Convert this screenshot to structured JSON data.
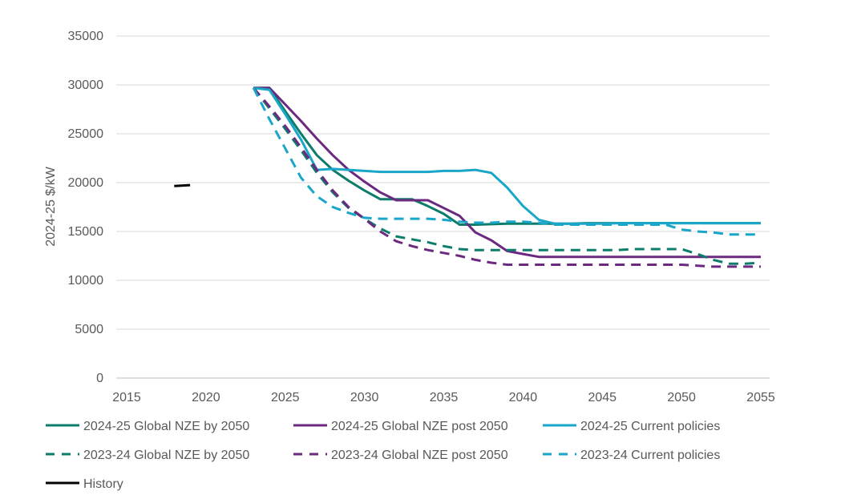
{
  "chart_data": {
    "type": "line",
    "ylabel": "2024-25 $/kW",
    "xlabel": "",
    "xlim": [
      2015,
      2055
    ],
    "ylim": [
      0,
      35000
    ],
    "xticks": [
      "2015",
      "2020",
      "2025",
      "2030",
      "2035",
      "2040",
      "2045",
      "2050",
      "2055"
    ],
    "yticks": [
      "0",
      "5000",
      "10000",
      "15000",
      "20000",
      "25000",
      "30000",
      "35000"
    ],
    "grid": "horizontal",
    "legend_position": "bottom",
    "series": [
      {
        "name": "2024-25 Global NZE by 2050",
        "color": "#0E7C6B",
        "dash": "solid",
        "points": [
          [
            2023,
            29700
          ],
          [
            2024,
            29700
          ],
          [
            2025,
            27300
          ],
          [
            2026,
            25000
          ],
          [
            2027,
            22800
          ],
          [
            2028,
            21300
          ],
          [
            2029,
            20200
          ],
          [
            2030,
            19200
          ],
          [
            2031,
            18300
          ],
          [
            2032,
            18300
          ],
          [
            2033,
            18300
          ],
          [
            2034,
            17600
          ],
          [
            2035,
            16800
          ],
          [
            2036,
            15700
          ],
          [
            2037,
            15700
          ],
          [
            2038,
            15750
          ],
          [
            2039,
            15800
          ],
          [
            2040,
            15800
          ],
          [
            2041,
            15800
          ],
          [
            2042,
            15800
          ],
          [
            2043,
            15800
          ],
          [
            2044,
            15850
          ],
          [
            2045,
            15850
          ],
          [
            2046,
            15850
          ],
          [
            2047,
            15850
          ],
          [
            2048,
            15850
          ],
          [
            2049,
            15850
          ],
          [
            2050,
            15850
          ],
          [
            2051,
            15850
          ],
          [
            2052,
            15850
          ],
          [
            2053,
            15850
          ],
          [
            2054,
            15850
          ],
          [
            2055,
            15850
          ]
        ]
      },
      {
        "name": "2024-25 Global NZE post 2050",
        "color": "#6B2A80",
        "dash": "solid",
        "points": [
          [
            2023,
            29700
          ],
          [
            2024,
            29700
          ],
          [
            2025,
            28000
          ],
          [
            2026,
            26300
          ],
          [
            2027,
            24500
          ],
          [
            2028,
            22800
          ],
          [
            2029,
            21300
          ],
          [
            2030,
            20100
          ],
          [
            2031,
            19000
          ],
          [
            2032,
            18200
          ],
          [
            2033,
            18200
          ],
          [
            2034,
            18200
          ],
          [
            2035,
            17400
          ],
          [
            2036,
            16600
          ],
          [
            2037,
            14900
          ],
          [
            2038,
            14100
          ],
          [
            2039,
            13000
          ],
          [
            2040,
            12700
          ],
          [
            2041,
            12400
          ],
          [
            2042,
            12400
          ],
          [
            2043,
            12400
          ],
          [
            2044,
            12400
          ],
          [
            2045,
            12400
          ],
          [
            2046,
            12400
          ],
          [
            2047,
            12400
          ],
          [
            2048,
            12400
          ],
          [
            2049,
            12400
          ],
          [
            2050,
            12400
          ],
          [
            2051,
            12400
          ],
          [
            2052,
            12400
          ],
          [
            2053,
            12400
          ],
          [
            2054,
            12400
          ],
          [
            2055,
            12400
          ]
        ]
      },
      {
        "name": "2024-25 Current policies",
        "color": "#1AA6C8",
        "dash": "solid",
        "points": [
          [
            2023,
            29700
          ],
          [
            2024,
            29500
          ],
          [
            2025,
            27000
          ],
          [
            2026,
            24400
          ],
          [
            2027,
            21300
          ],
          [
            2028,
            21400
          ],
          [
            2029,
            21300
          ],
          [
            2030,
            21200
          ],
          [
            2031,
            21100
          ],
          [
            2032,
            21100
          ],
          [
            2033,
            21100
          ],
          [
            2034,
            21100
          ],
          [
            2035,
            21200
          ],
          [
            2036,
            21200
          ],
          [
            2037,
            21300
          ],
          [
            2038,
            21000
          ],
          [
            2039,
            19500
          ],
          [
            2040,
            17600
          ],
          [
            2041,
            16200
          ],
          [
            2042,
            15800
          ],
          [
            2043,
            15800
          ],
          [
            2044,
            15800
          ],
          [
            2045,
            15800
          ],
          [
            2046,
            15850
          ],
          [
            2047,
            15850
          ],
          [
            2048,
            15850
          ],
          [
            2049,
            15850
          ],
          [
            2050,
            15850
          ],
          [
            2051,
            15850
          ],
          [
            2052,
            15850
          ],
          [
            2053,
            15850
          ],
          [
            2054,
            15850
          ],
          [
            2055,
            15850
          ]
        ]
      },
      {
        "name": "2023-24 Global NZE by 2050",
        "color": "#0E7C6B",
        "dash": "dashed",
        "points": [
          [
            2023,
            29700
          ],
          [
            2024,
            27600
          ],
          [
            2025,
            25500
          ],
          [
            2026,
            23300
          ],
          [
            2027,
            21000
          ],
          [
            2028,
            19000
          ],
          [
            2029,
            17400
          ],
          [
            2030,
            16300
          ],
          [
            2031,
            15300
          ],
          [
            2032,
            14500
          ],
          [
            2033,
            14200
          ],
          [
            2034,
            13900
          ],
          [
            2035,
            13500
          ],
          [
            2036,
            13200
          ],
          [
            2037,
            13100
          ],
          [
            2038,
            13100
          ],
          [
            2039,
            13100
          ],
          [
            2040,
            13100
          ],
          [
            2041,
            13100
          ],
          [
            2042,
            13100
          ],
          [
            2043,
            13100
          ],
          [
            2044,
            13100
          ],
          [
            2045,
            13100
          ],
          [
            2046,
            13100
          ],
          [
            2047,
            13200
          ],
          [
            2048,
            13200
          ],
          [
            2049,
            13200
          ],
          [
            2050,
            13200
          ],
          [
            2051,
            12700
          ],
          [
            2052,
            12100
          ],
          [
            2053,
            11700
          ],
          [
            2054,
            11700
          ],
          [
            2055,
            11800
          ]
        ]
      },
      {
        "name": "2023-24 Global NZE post 2050",
        "color": "#6B2A80",
        "dash": "dashed",
        "points": [
          [
            2023,
            29700
          ],
          [
            2024,
            27800
          ],
          [
            2025,
            25800
          ],
          [
            2026,
            23600
          ],
          [
            2027,
            21300
          ],
          [
            2028,
            19200
          ],
          [
            2029,
            17500
          ],
          [
            2030,
            16300
          ],
          [
            2031,
            15000
          ],
          [
            2032,
            14000
          ],
          [
            2033,
            13500
          ],
          [
            2034,
            13100
          ],
          [
            2035,
            12800
          ],
          [
            2036,
            12500
          ],
          [
            2037,
            12100
          ],
          [
            2038,
            11800
          ],
          [
            2039,
            11600
          ],
          [
            2040,
            11600
          ],
          [
            2041,
            11600
          ],
          [
            2042,
            11600
          ],
          [
            2043,
            11600
          ],
          [
            2044,
            11600
          ],
          [
            2045,
            11600
          ],
          [
            2046,
            11600
          ],
          [
            2047,
            11600
          ],
          [
            2048,
            11600
          ],
          [
            2049,
            11600
          ],
          [
            2050,
            11600
          ],
          [
            2051,
            11500
          ],
          [
            2052,
            11400
          ],
          [
            2053,
            11400
          ],
          [
            2054,
            11400
          ],
          [
            2055,
            11400
          ]
        ]
      },
      {
        "name": "2023-24 Current policies",
        "color": "#1AA6C8",
        "dash": "dashed",
        "points": [
          [
            2023,
            29700
          ],
          [
            2024,
            26500
          ],
          [
            2025,
            23500
          ],
          [
            2026,
            20500
          ],
          [
            2027,
            18600
          ],
          [
            2028,
            17500
          ],
          [
            2029,
            16900
          ],
          [
            2030,
            16400
          ],
          [
            2031,
            16300
          ],
          [
            2032,
            16300
          ],
          [
            2033,
            16300
          ],
          [
            2034,
            16300
          ],
          [
            2035,
            16200
          ],
          [
            2036,
            16000
          ],
          [
            2037,
            15900
          ],
          [
            2038,
            15900
          ],
          [
            2039,
            16000
          ],
          [
            2040,
            16000
          ],
          [
            2041,
            15900
          ],
          [
            2042,
            15700
          ],
          [
            2043,
            15700
          ],
          [
            2044,
            15700
          ],
          [
            2045,
            15700
          ],
          [
            2046,
            15700
          ],
          [
            2047,
            15700
          ],
          [
            2048,
            15700
          ],
          [
            2049,
            15700
          ],
          [
            2050,
            15200
          ],
          [
            2051,
            15000
          ],
          [
            2052,
            14900
          ],
          [
            2053,
            14700
          ],
          [
            2054,
            14700
          ],
          [
            2055,
            14700
          ]
        ]
      },
      {
        "name": "History",
        "color": "#000000",
        "dash": "solid",
        "points": [
          [
            2018,
            19650
          ],
          [
            2019,
            19750
          ]
        ]
      }
    ]
  }
}
